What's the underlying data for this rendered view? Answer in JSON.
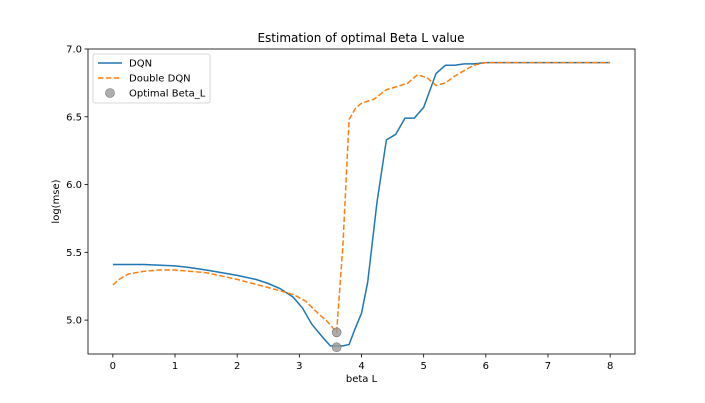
{
  "chart_data": {
    "type": "line",
    "title": "Estimation of optimal Beta L value",
    "xlabel": "beta L",
    "ylabel": "log(mse)",
    "xlim": [
      -0.4,
      8.4
    ],
    "ylim": [
      4.75,
      7.0
    ],
    "xticks": [
      0,
      1,
      2,
      3,
      4,
      5,
      6,
      7,
      8
    ],
    "yticks": [
      5.0,
      5.5,
      6.0,
      6.5,
      7.0
    ],
    "xtick_labels": [
      "0",
      "1",
      "2",
      "3",
      "4",
      "5",
      "6",
      "7",
      "8"
    ],
    "ytick_labels": [
      "5.0",
      "5.5",
      "6.0",
      "6.5",
      "7.0"
    ],
    "grid": false,
    "legend_position": "top-left",
    "series": [
      {
        "name": "DQN",
        "color": "#1f77b4",
        "style": "solid",
        "x": [
          0,
          0.5,
          1.0,
          1.2,
          1.5,
          2.0,
          2.3,
          2.5,
          2.7,
          2.9,
          3.05,
          3.2,
          3.4,
          3.5,
          3.6,
          3.7,
          3.8,
          3.9,
          4.0,
          4.1,
          4.25,
          4.4,
          4.55,
          4.7,
          4.85,
          5.0,
          5.2,
          5.35,
          5.5,
          5.65,
          5.8,
          6.0,
          6.5,
          7.0,
          7.5,
          8.0
        ],
        "y": [
          5.41,
          5.41,
          5.4,
          5.39,
          5.37,
          5.33,
          5.3,
          5.27,
          5.23,
          5.17,
          5.09,
          4.97,
          4.86,
          4.81,
          4.81,
          4.81,
          4.82,
          4.94,
          5.05,
          5.28,
          5.87,
          6.33,
          6.37,
          6.49,
          6.49,
          6.57,
          6.82,
          6.88,
          6.88,
          6.89,
          6.89,
          6.9,
          6.9,
          6.9,
          6.9,
          6.9
        ]
      },
      {
        "name": "Double DQN",
        "color": "#ff7f0e",
        "style": "dashed",
        "x": [
          0,
          0.1,
          0.25,
          0.5,
          0.75,
          1.0,
          1.5,
          2.0,
          2.5,
          2.9,
          3.1,
          3.3,
          3.45,
          3.6,
          3.7,
          3.8,
          3.9,
          4.0,
          4.2,
          4.4,
          4.55,
          4.75,
          4.9,
          5.05,
          5.2,
          5.35,
          5.5,
          5.65,
          5.8,
          6.0,
          6.5,
          7.0,
          7.5,
          8.0
        ],
        "y": [
          5.26,
          5.3,
          5.34,
          5.36,
          5.37,
          5.37,
          5.35,
          5.3,
          5.24,
          5.19,
          5.14,
          5.05,
          4.99,
          4.91,
          5.55,
          6.48,
          6.56,
          6.6,
          6.63,
          6.7,
          6.72,
          6.75,
          6.81,
          6.79,
          6.73,
          6.75,
          6.8,
          6.84,
          6.88,
          6.9,
          6.9,
          6.9,
          6.9,
          6.9
        ]
      }
    ],
    "optimal_points": {
      "name": "Optimal Beta_L",
      "color": "#999999",
      "x": [
        3.6,
        3.6
      ],
      "y": [
        4.91,
        4.8
      ]
    }
  }
}
